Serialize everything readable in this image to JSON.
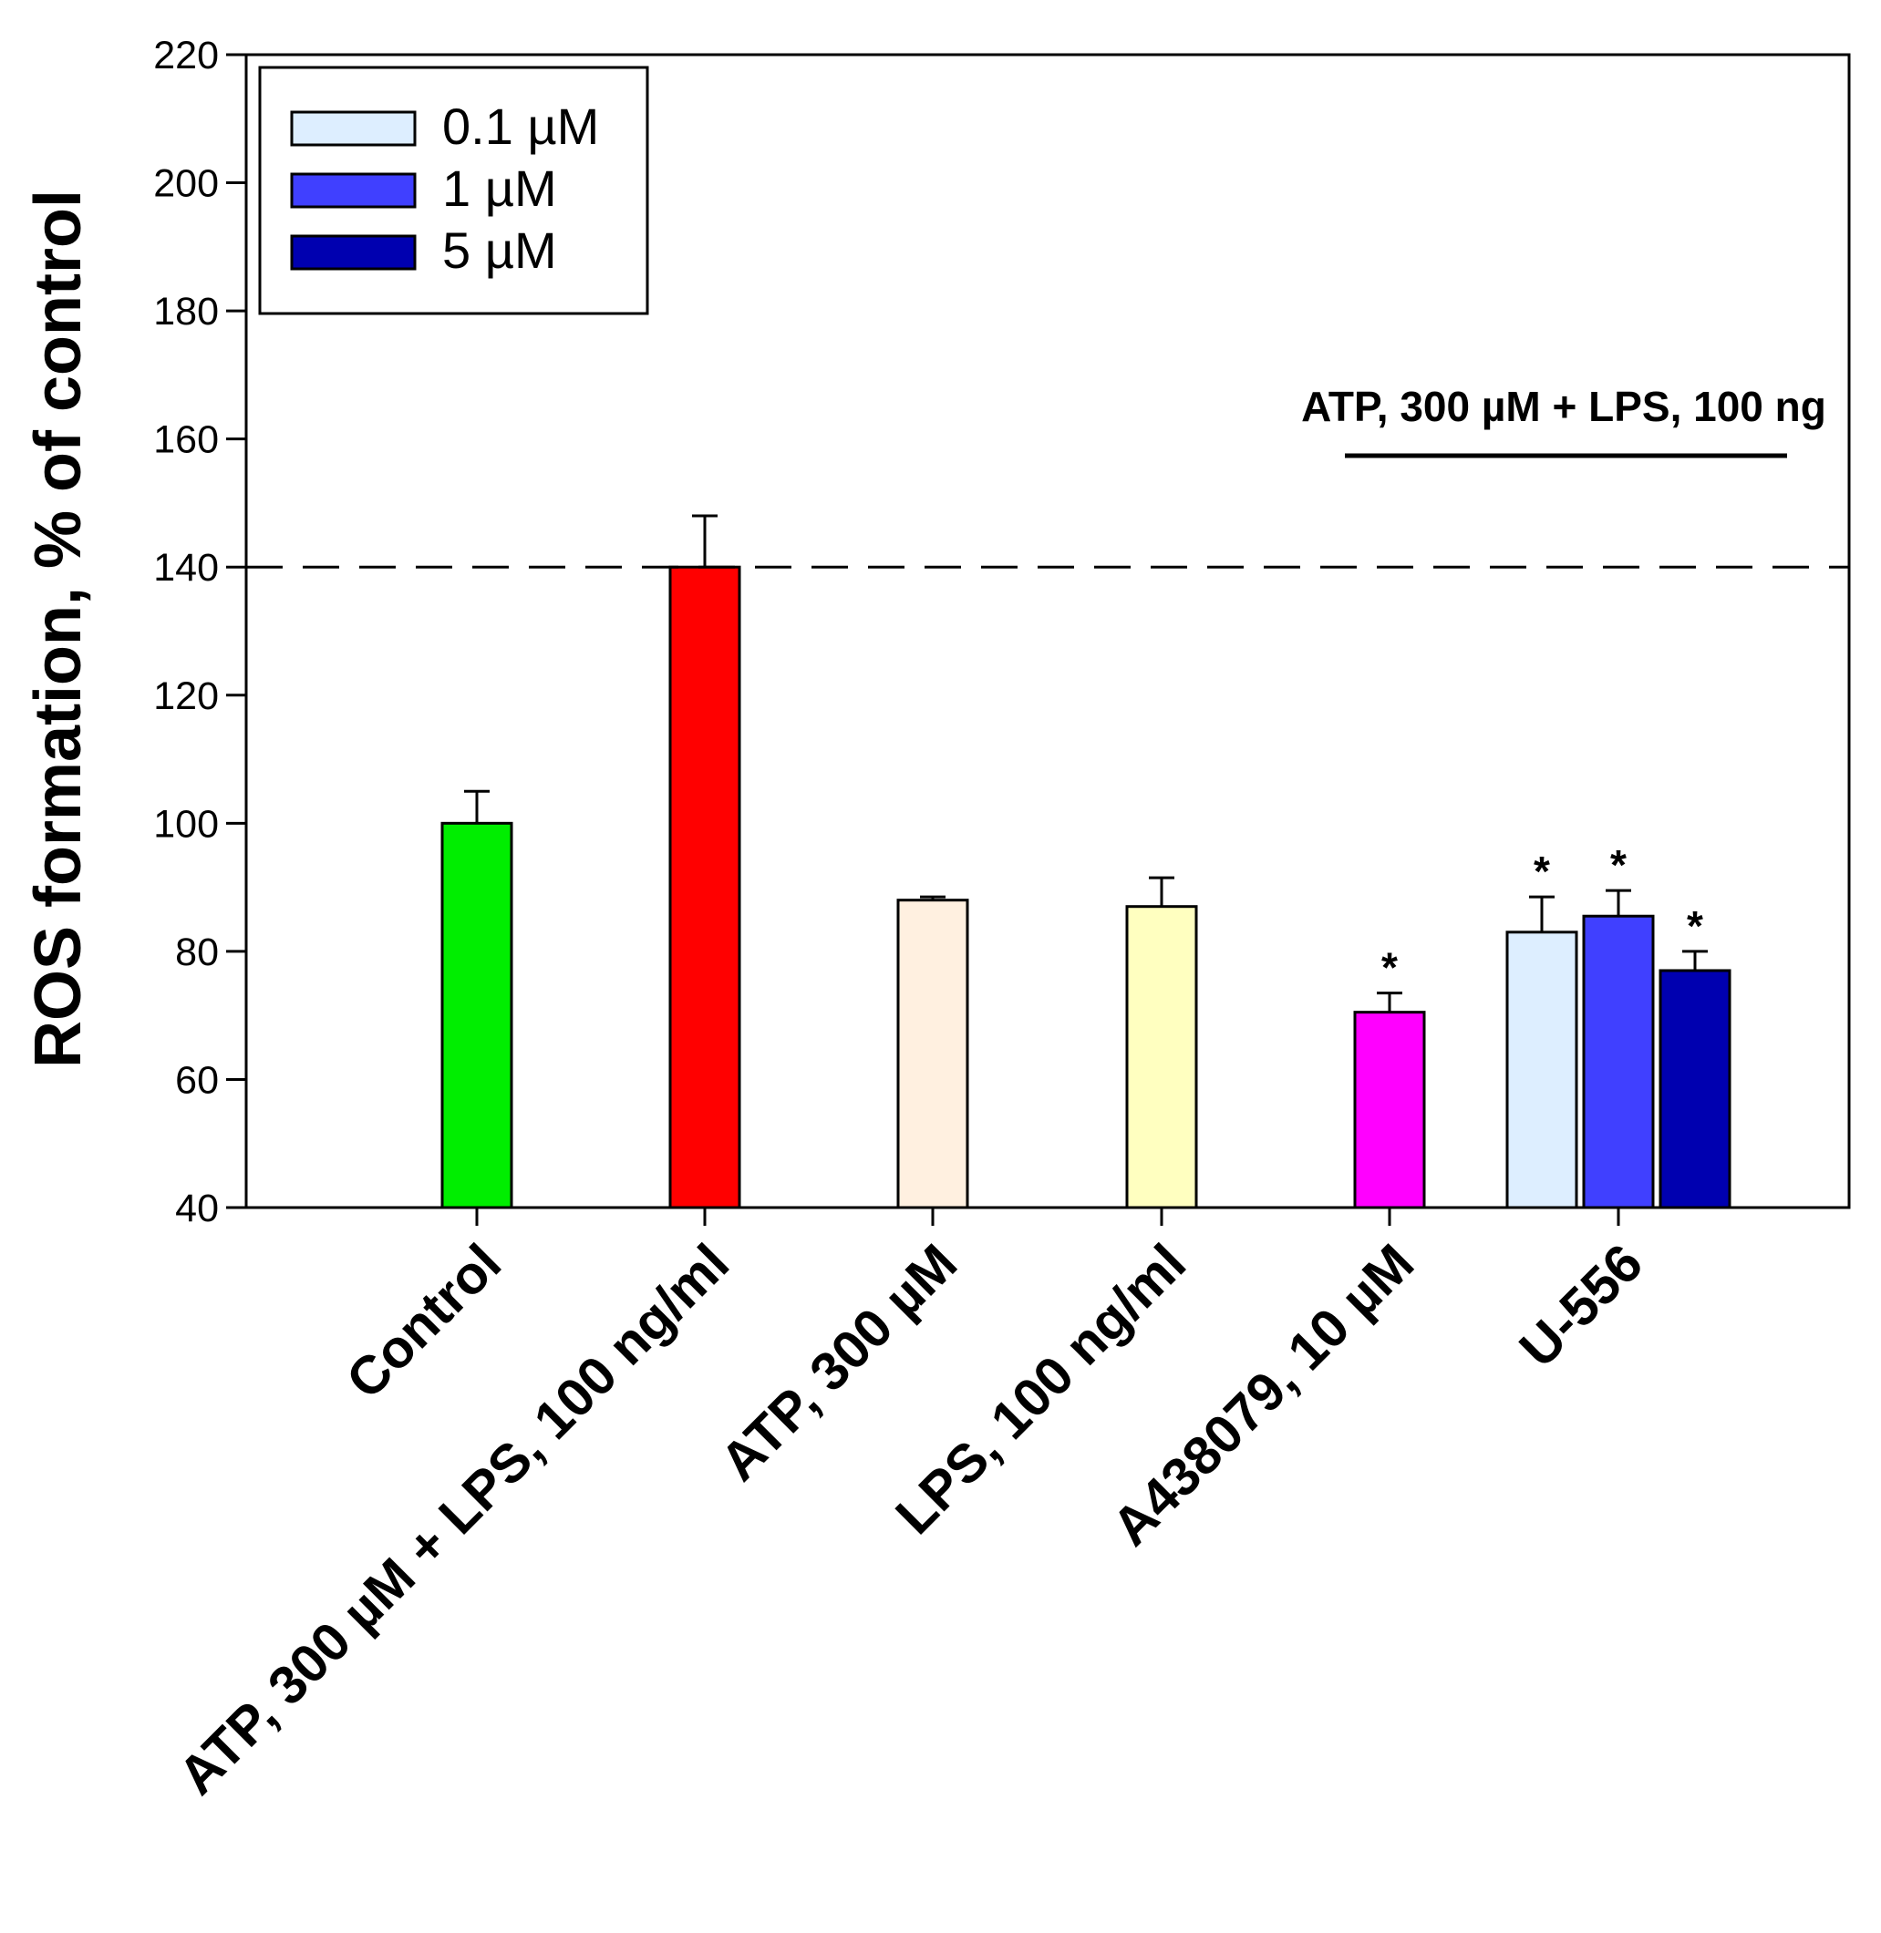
{
  "chart_data": {
    "type": "bar",
    "title": "",
    "xlabel": "",
    "ylabel": "ROS formation, % of control",
    "ylim": [
      40,
      220
    ],
    "yticks": [
      40,
      60,
      80,
      100,
      120,
      140,
      160,
      180,
      200,
      220
    ],
    "grid": false,
    "categories": [
      "Control",
      "ATP, 300 µM + LPS, 100 ng/ml",
      "ATP, 300 µM",
      "LPS, 100 ng/ml",
      "A438079, 10 µM",
      "U-556"
    ],
    "bars": [
      {
        "category": "Control",
        "value": 100,
        "error": 5,
        "color": "#00ee00",
        "significant": false
      },
      {
        "category": "ATP, 300 µM + LPS, 100 ng/ml",
        "value": 140,
        "error": 8,
        "color": "#ff0000",
        "significant": false
      },
      {
        "category": "ATP, 300 µM",
        "value": 88,
        "error": 0.5,
        "color": "#fff0e0",
        "significant": false
      },
      {
        "category": "LPS, 100 ng/ml",
        "value": 87,
        "error": 4.5,
        "color": "#ffffc0",
        "significant": false
      },
      {
        "category": "A438079, 10 µM",
        "value": 70.5,
        "error": 3,
        "color": "#ff00ff",
        "significant": true
      }
    ],
    "grouped": {
      "category": "U-556",
      "series": [
        {
          "name": "0.1 µM",
          "value": 83,
          "error": 5.5,
          "color": "#ddeeff",
          "significant": true
        },
        {
          "name": "1 µM",
          "value": 85.5,
          "error": 4,
          "color": "#4040ff",
          "significant": true
        },
        {
          "name": "5 µM",
          "value": 77,
          "error": 3,
          "color": "#0000b0",
          "significant": true
        }
      ]
    },
    "reference_line": {
      "value": 140,
      "style": "dashed"
    },
    "annotation": {
      "text": "ATP, 300 µM + LPS, 100 ng",
      "spans": [
        "A438079, 10 µM",
        "U-556"
      ]
    },
    "significance_marker": "*",
    "legend": {
      "position": "top-left",
      "entries": [
        {
          "label": "0.1 µM",
          "color": "#ddeeff"
        },
        {
          "label": "1 µM",
          "color": "#4040ff"
        },
        {
          "label": "5 µM",
          "color": "#0000b0"
        }
      ]
    }
  }
}
